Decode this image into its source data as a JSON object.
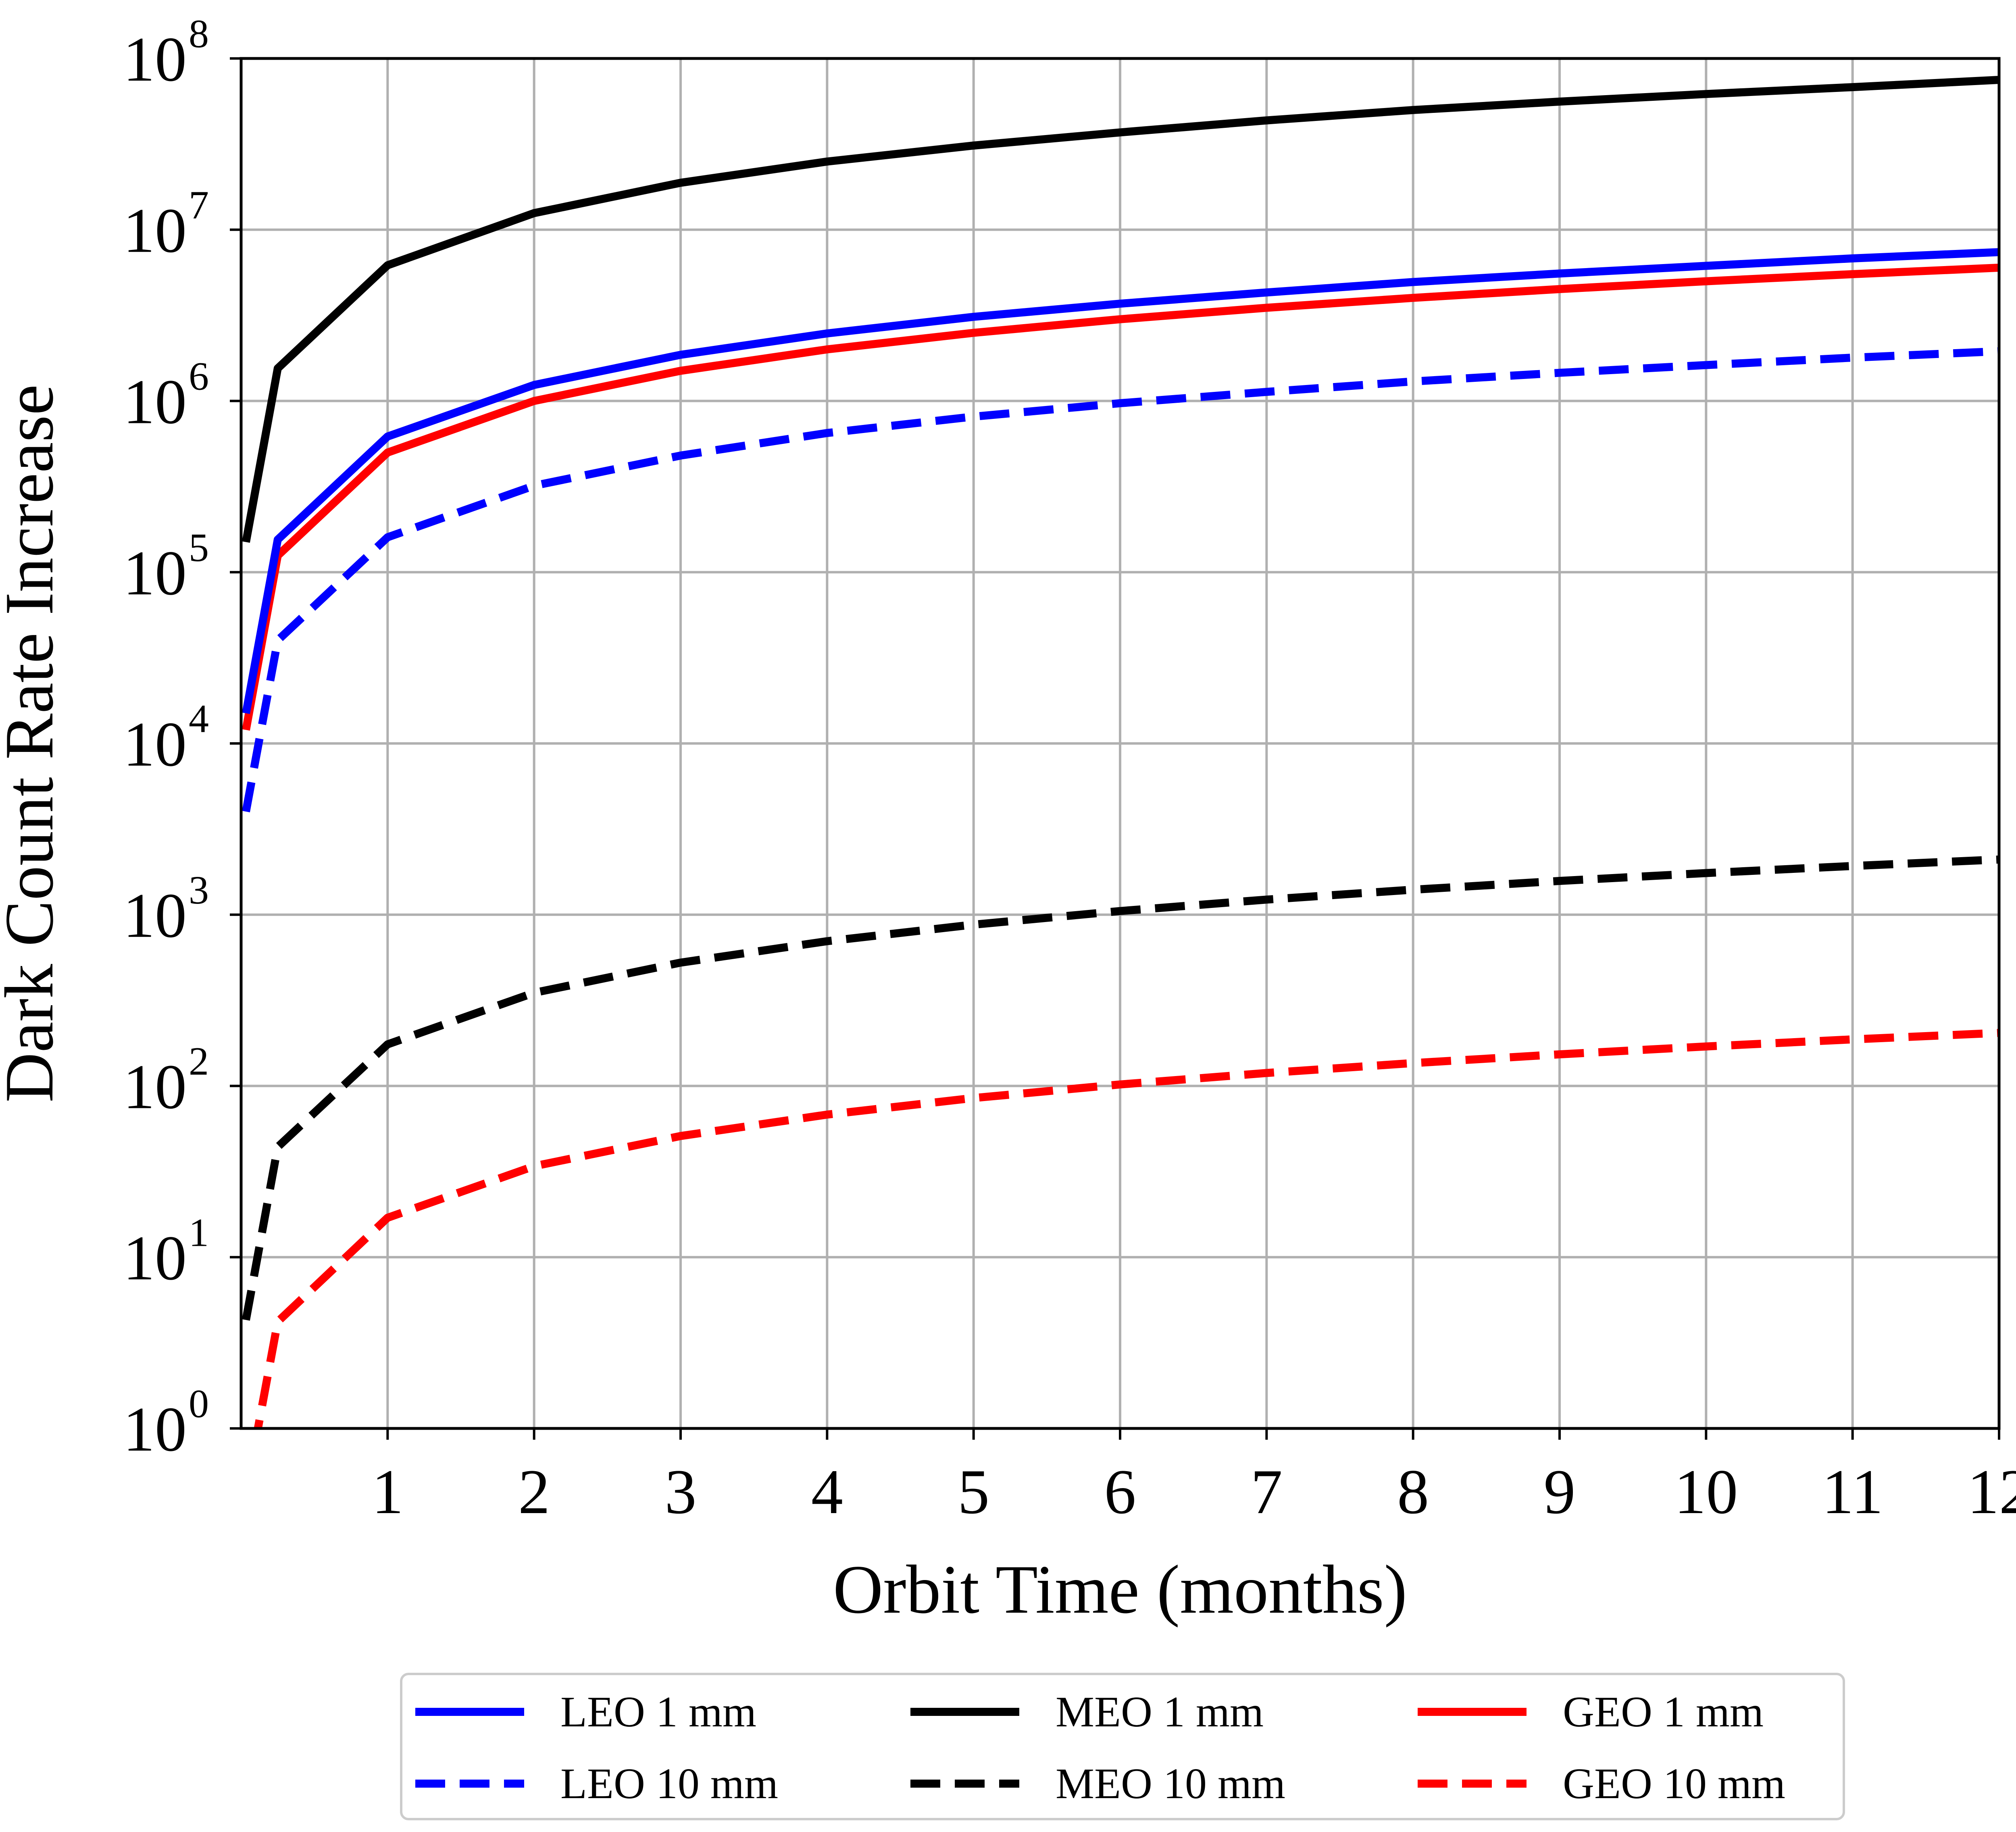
{
  "chart_data": {
    "type": "line",
    "xlabel": "Orbit Time (months)",
    "ylabel": "Dark Count Rate Increase",
    "xlim": [
      0,
      12
    ],
    "ylim": [
      1,
      100000000
    ],
    "yscale": "log",
    "grid": true,
    "legend_position": "bottom",
    "x_ticks": [
      "1",
      "2",
      "3",
      "4",
      "5",
      "6",
      "7",
      "8",
      "9",
      "10",
      "11",
      "12"
    ],
    "y_ticks": [
      {
        "base": "10",
        "exp": "0"
      },
      {
        "base": "10",
        "exp": "1"
      },
      {
        "base": "10",
        "exp": "2"
      },
      {
        "base": "10",
        "exp": "3"
      },
      {
        "base": "10",
        "exp": "4"
      },
      {
        "base": "10",
        "exp": "5"
      },
      {
        "base": "10",
        "exp": "6"
      },
      {
        "base": "10",
        "exp": "7"
      },
      {
        "base": "10",
        "exp": "8"
      }
    ],
    "x": [
      0.033,
      0.25,
      1,
      2,
      3,
      4,
      5,
      6,
      7,
      8,
      9,
      10,
      11,
      12
    ],
    "series": [
      {
        "name": "LEO 1 mm",
        "color": "#0000ff",
        "dash": "solid",
        "values": [
          15000,
          155000,
          620000,
          1240000,
          1860000,
          2480000,
          3100000,
          3700000,
          4300000,
          4950000,
          5550000,
          6150000,
          6800000,
          7400000
        ]
      },
      {
        "name": "MEO 1 mm",
        "color": "#000000",
        "dash": "solid",
        "values": [
          150000,
          1550000,
          6200000,
          12500000,
          18800000,
          25000000,
          31000000,
          37000000,
          43500000,
          50000000,
          56000000,
          62000000,
          68000000,
          75000000
        ]
      },
      {
        "name": "GEO 1 mm",
        "color": "#ff0000",
        "dash": "solid",
        "values": [
          12000,
          125000,
          500000,
          1000000,
          1500000,
          2000000,
          2500000,
          3000000,
          3500000,
          4000000,
          4500000,
          5000000,
          5500000,
          6000000
        ]
      },
      {
        "name": "LEO 10 mm",
        "color": "#0000ff",
        "dash": "dashed",
        "values": [
          4000,
          40000,
          160000,
          320000,
          480000,
          650000,
          810000,
          970000,
          1130000,
          1300000,
          1460000,
          1620000,
          1790000,
          1950000
        ]
      },
      {
        "name": "MEO 10 mm",
        "color": "#000000",
        "dash": "dashed",
        "values": [
          4.3,
          44,
          175,
          350,
          525,
          700,
          875,
          1050,
          1225,
          1400,
          1575,
          1750,
          1925,
          2100
        ]
      },
      {
        "name": "GEO 10 mm",
        "color": "#ff0000",
        "dash": "dashed",
        "values": [
          0.42,
          4.2,
          17,
          34,
          51,
          68,
          85,
          102,
          119,
          136,
          153,
          170,
          187,
          204
        ]
      }
    ]
  }
}
